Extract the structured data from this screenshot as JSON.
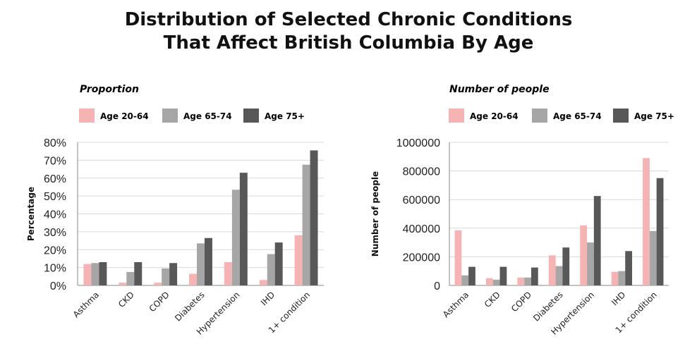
{
  "title": {
    "line1": "Distribution of Selected Chronic Conditions",
    "line2": "That Affect British Columbia By Age"
  },
  "colors": {
    "age_20_64": "#f5b3b3",
    "age_65_74": "#a6a6a6",
    "age_75_plus": "#585858"
  },
  "chart_data": [
    {
      "type": "bar",
      "title": "Proportion",
      "ylabel": "Percentage",
      "xlabel": "",
      "legend_position": "top",
      "grid": true,
      "ylim": [
        0,
        0.8
      ],
      "yticks": [
        0,
        0.1,
        0.2,
        0.3,
        0.4,
        0.5,
        0.6,
        0.7,
        0.8
      ],
      "ytick_labels": [
        "0%",
        "10%",
        "20%",
        "30%",
        "40%",
        "50%",
        "60%",
        "70%",
        "80%"
      ],
      "categories": [
        "Asthma",
        "CKD",
        "COPD",
        "Diabetes",
        "Hypertension",
        "IHD",
        "1+ condition"
      ],
      "series": [
        {
          "name": "Age 20-64",
          "values": [
            0.12,
            0.015,
            0.015,
            0.065,
            0.13,
            0.03,
            0.28
          ]
        },
        {
          "name": "Age 65-74",
          "values": [
            0.125,
            0.075,
            0.095,
            0.235,
            0.535,
            0.175,
            0.675
          ]
        },
        {
          "name": "Age 75+",
          "values": [
            0.13,
            0.13,
            0.125,
            0.265,
            0.63,
            0.24,
            0.755
          ]
        }
      ]
    },
    {
      "type": "bar",
      "title": "Number of people",
      "ylabel": "Number of people",
      "xlabel": "",
      "legend_position": "top",
      "grid": true,
      "ylim": [
        0,
        1000000
      ],
      "yticks": [
        0,
        200000,
        400000,
        600000,
        800000,
        1000000
      ],
      "ytick_labels": [
        "0",
        "200000",
        "400000",
        "600000",
        "800000",
        "1000000"
      ],
      "categories": [
        "Asthma",
        "CKD",
        "COPD",
        "Diabetes",
        "Hypertension",
        "IHD",
        "1+ condition"
      ],
      "series": [
        {
          "name": "Age 20-64",
          "values": [
            385000,
            50000,
            55000,
            210000,
            420000,
            95000,
            890000
          ]
        },
        {
          "name": "Age 65-74",
          "values": [
            70000,
            40000,
            55000,
            135000,
            300000,
            100000,
            380000
          ]
        },
        {
          "name": "Age 75+",
          "values": [
            130000,
            130000,
            125000,
            265000,
            625000,
            240000,
            750000
          ]
        }
      ]
    }
  ]
}
